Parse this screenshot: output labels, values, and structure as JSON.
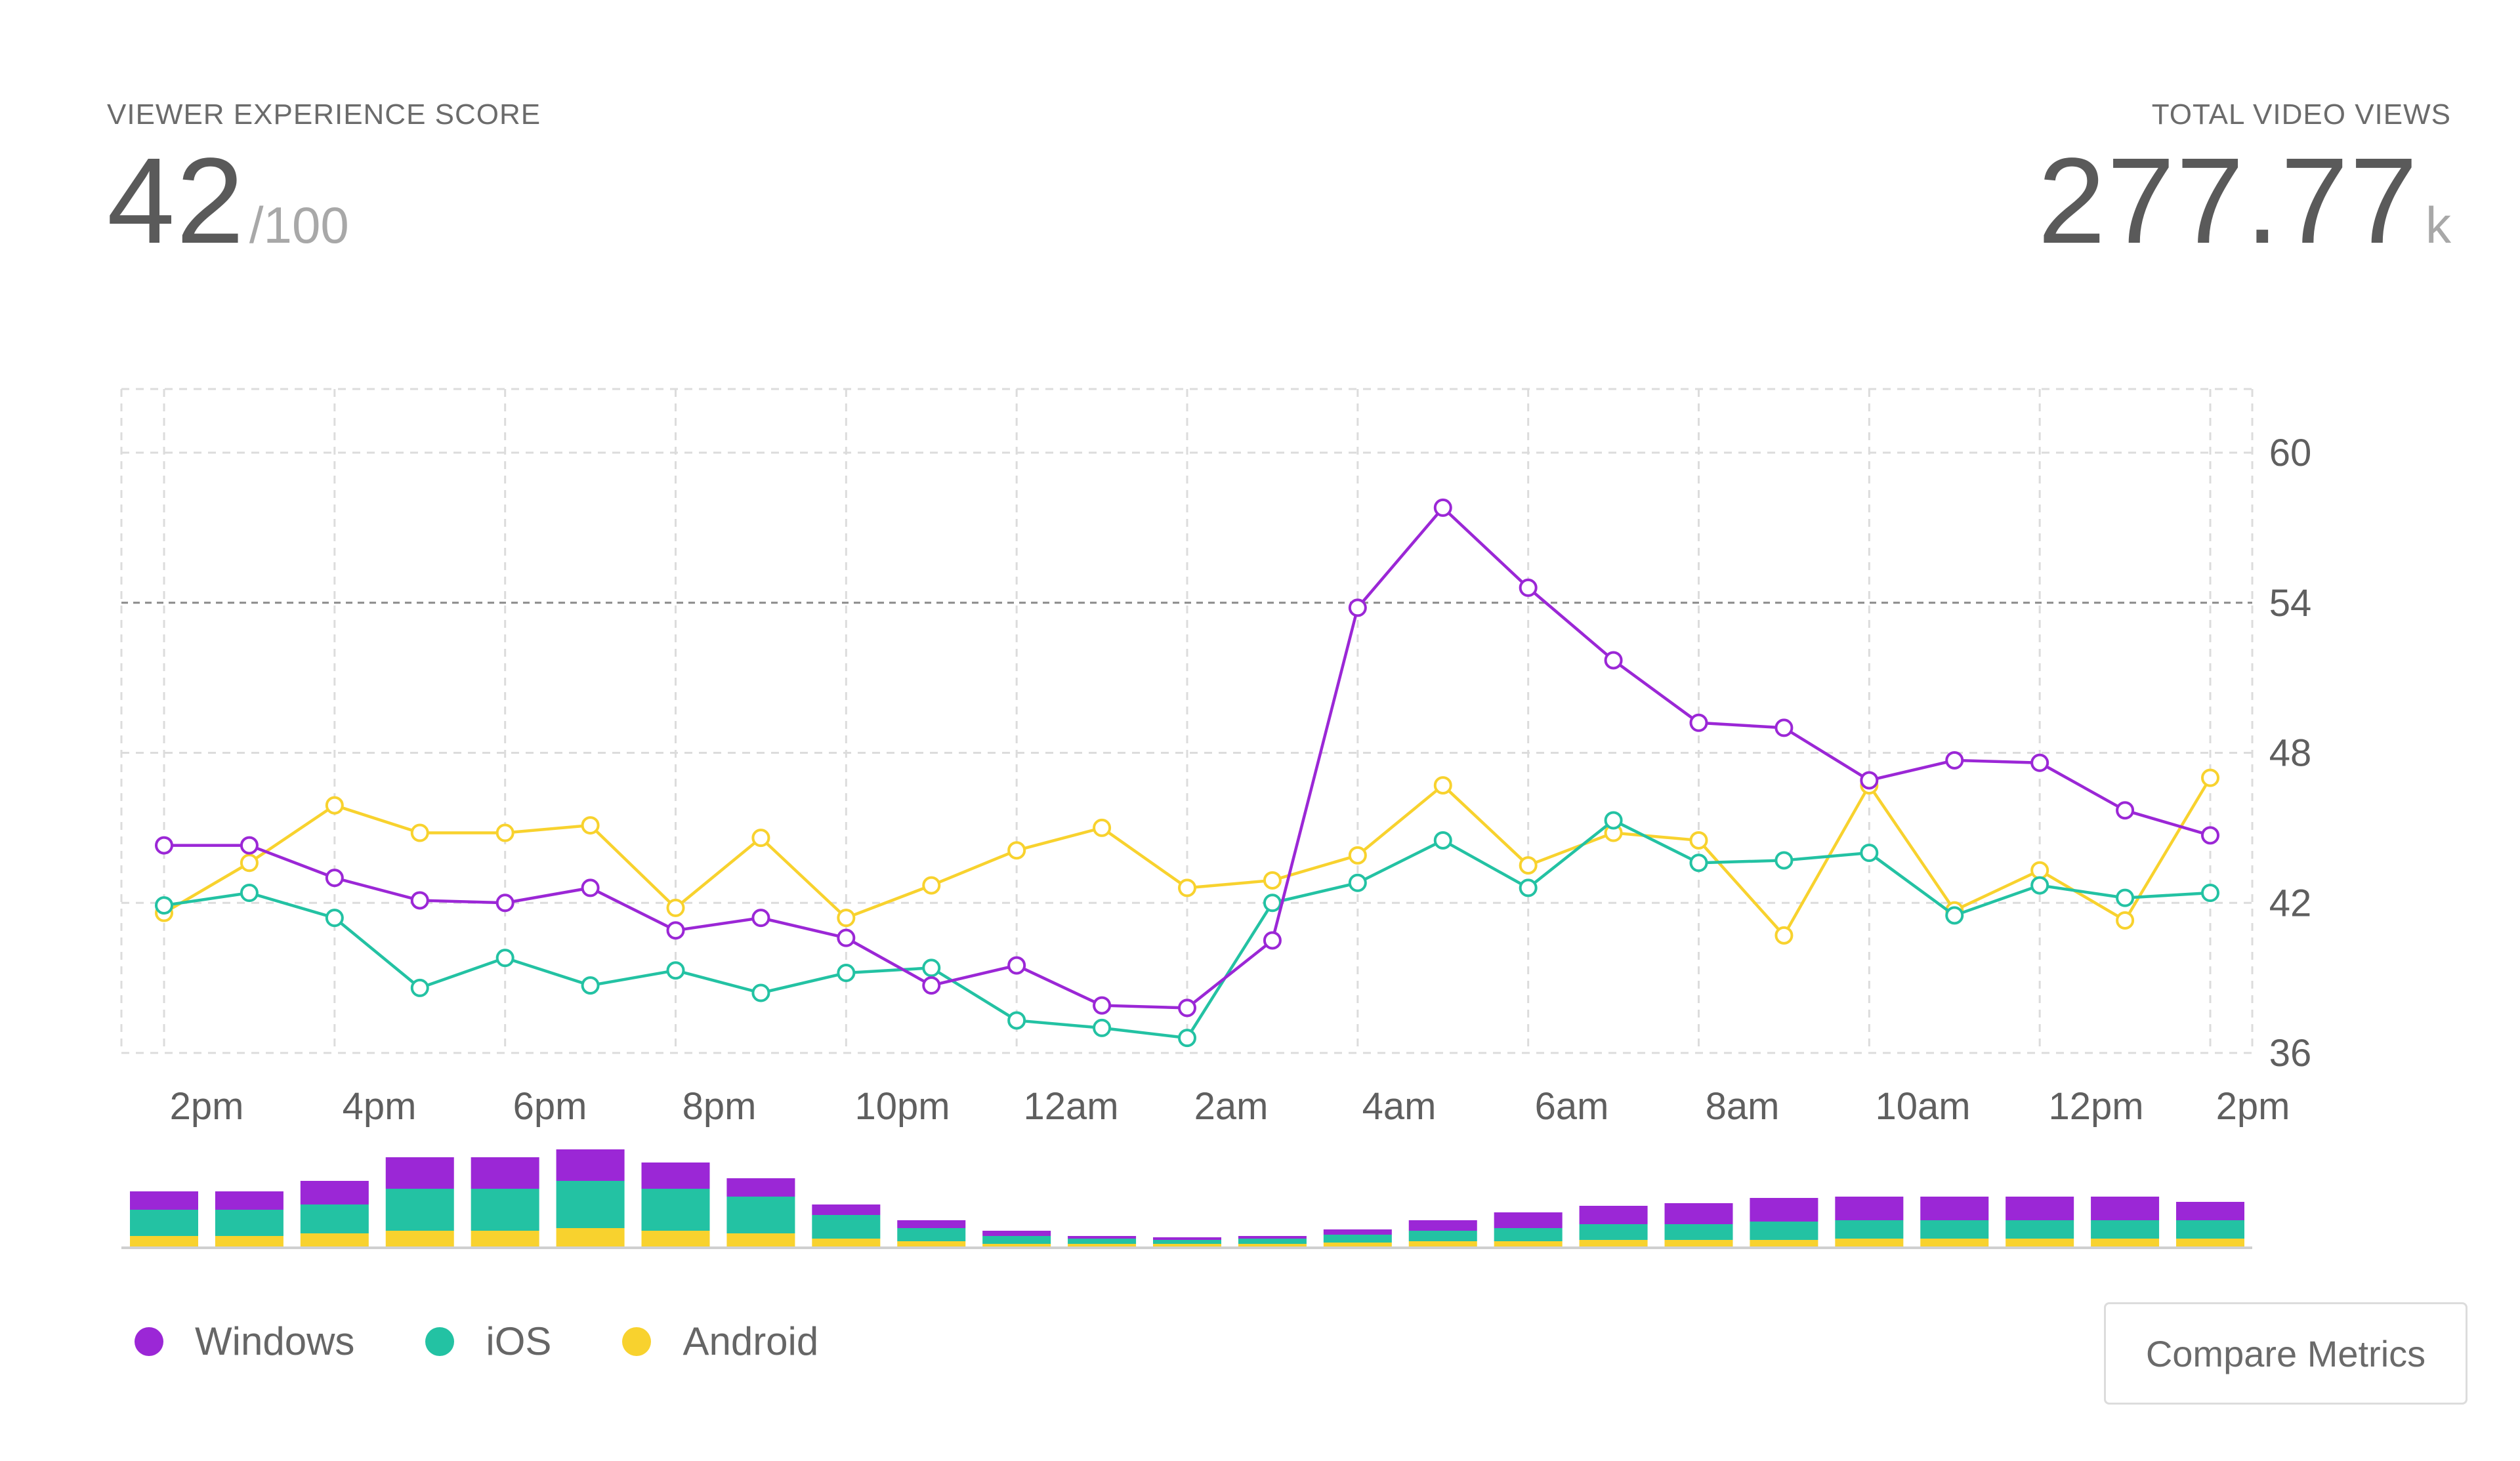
{
  "kpis": {
    "left": {
      "label": "VIEWER EXPERIENCE SCORE",
      "value": "42",
      "suffix": "/100"
    },
    "right": {
      "label": "TOTAL VIDEO VIEWS",
      "value": "277.77",
      "suffix": "k"
    }
  },
  "buttons": {
    "compare": "Compare Metrics"
  },
  "colors": {
    "Windows": "#9b27d6",
    "iOS": "#23c2a3",
    "Android": "#f8d22e"
  },
  "chart_data": {
    "type": "line",
    "x_tick_labels": [
      "2pm",
      "4pm",
      "6pm",
      "8pm",
      "10pm",
      "12am",
      "2am",
      "4am",
      "6am",
      "8am",
      "10am",
      "12pm",
      "2pm"
    ],
    "y_ticks": [
      60,
      54,
      48,
      42,
      36
    ],
    "ylim": [
      36,
      60
    ],
    "y_axis_position": "right",
    "grid": true,
    "reference_line": 54,
    "legend_position": "bottom-left",
    "series": [
      {
        "name": "Windows",
        "values": [
          44.3,
          44.3,
          43.0,
          42.1,
          42.0,
          42.6,
          40.9,
          41.4,
          40.6,
          38.7,
          39.5,
          37.9,
          37.8,
          40.5,
          53.8,
          57.8,
          54.6,
          51.7,
          49.2,
          49.0,
          46.9,
          47.7,
          47.6,
          45.7,
          44.7
        ]
      },
      {
        "name": "iOS",
        "values": [
          41.9,
          42.4,
          41.4,
          38.6,
          39.8,
          38.7,
          39.3,
          38.4,
          39.2,
          39.4,
          37.3,
          37.0,
          36.6,
          42.0,
          42.8,
          44.5,
          42.6,
          45.3,
          43.6,
          43.7,
          44.0,
          41.5,
          42.7,
          42.2,
          42.4
        ]
      },
      {
        "name": "Android",
        "values": [
          41.6,
          43.6,
          45.9,
          44.8,
          44.8,
          45.1,
          41.8,
          44.6,
          41.4,
          42.7,
          44.1,
          45.0,
          42.6,
          42.9,
          43.9,
          46.7,
          43.5,
          44.8,
          44.5,
          40.7,
          46.7,
          41.7,
          43.3,
          41.3,
          47.0
        ]
      }
    ],
    "volume_bars": {
      "Windows": [
        0.7,
        0.7,
        0.9,
        1.2,
        1.2,
        1.2,
        1.0,
        0.7,
        0.4,
        0.3,
        0.2,
        0.1,
        0.1,
        0.1,
        0.2,
        0.4,
        0.6,
        0.7,
        0.8,
        0.9,
        0.9,
        0.9,
        0.9,
        0.9,
        0.7
      ],
      "iOS": [
        1.0,
        1.0,
        1.1,
        1.6,
        1.6,
        1.8,
        1.6,
        1.4,
        0.9,
        0.5,
        0.3,
        0.2,
        0.15,
        0.2,
        0.3,
        0.4,
        0.5,
        0.6,
        0.6,
        0.7,
        0.7,
        0.7,
        0.7,
        0.7,
        0.7
      ],
      "Android": [
        0.4,
        0.4,
        0.5,
        0.6,
        0.6,
        0.7,
        0.6,
        0.5,
        0.3,
        0.2,
        0.1,
        0.1,
        0.1,
        0.1,
        0.15,
        0.2,
        0.2,
        0.25,
        0.25,
        0.25,
        0.3,
        0.3,
        0.3,
        0.3,
        0.3
      ]
    }
  }
}
